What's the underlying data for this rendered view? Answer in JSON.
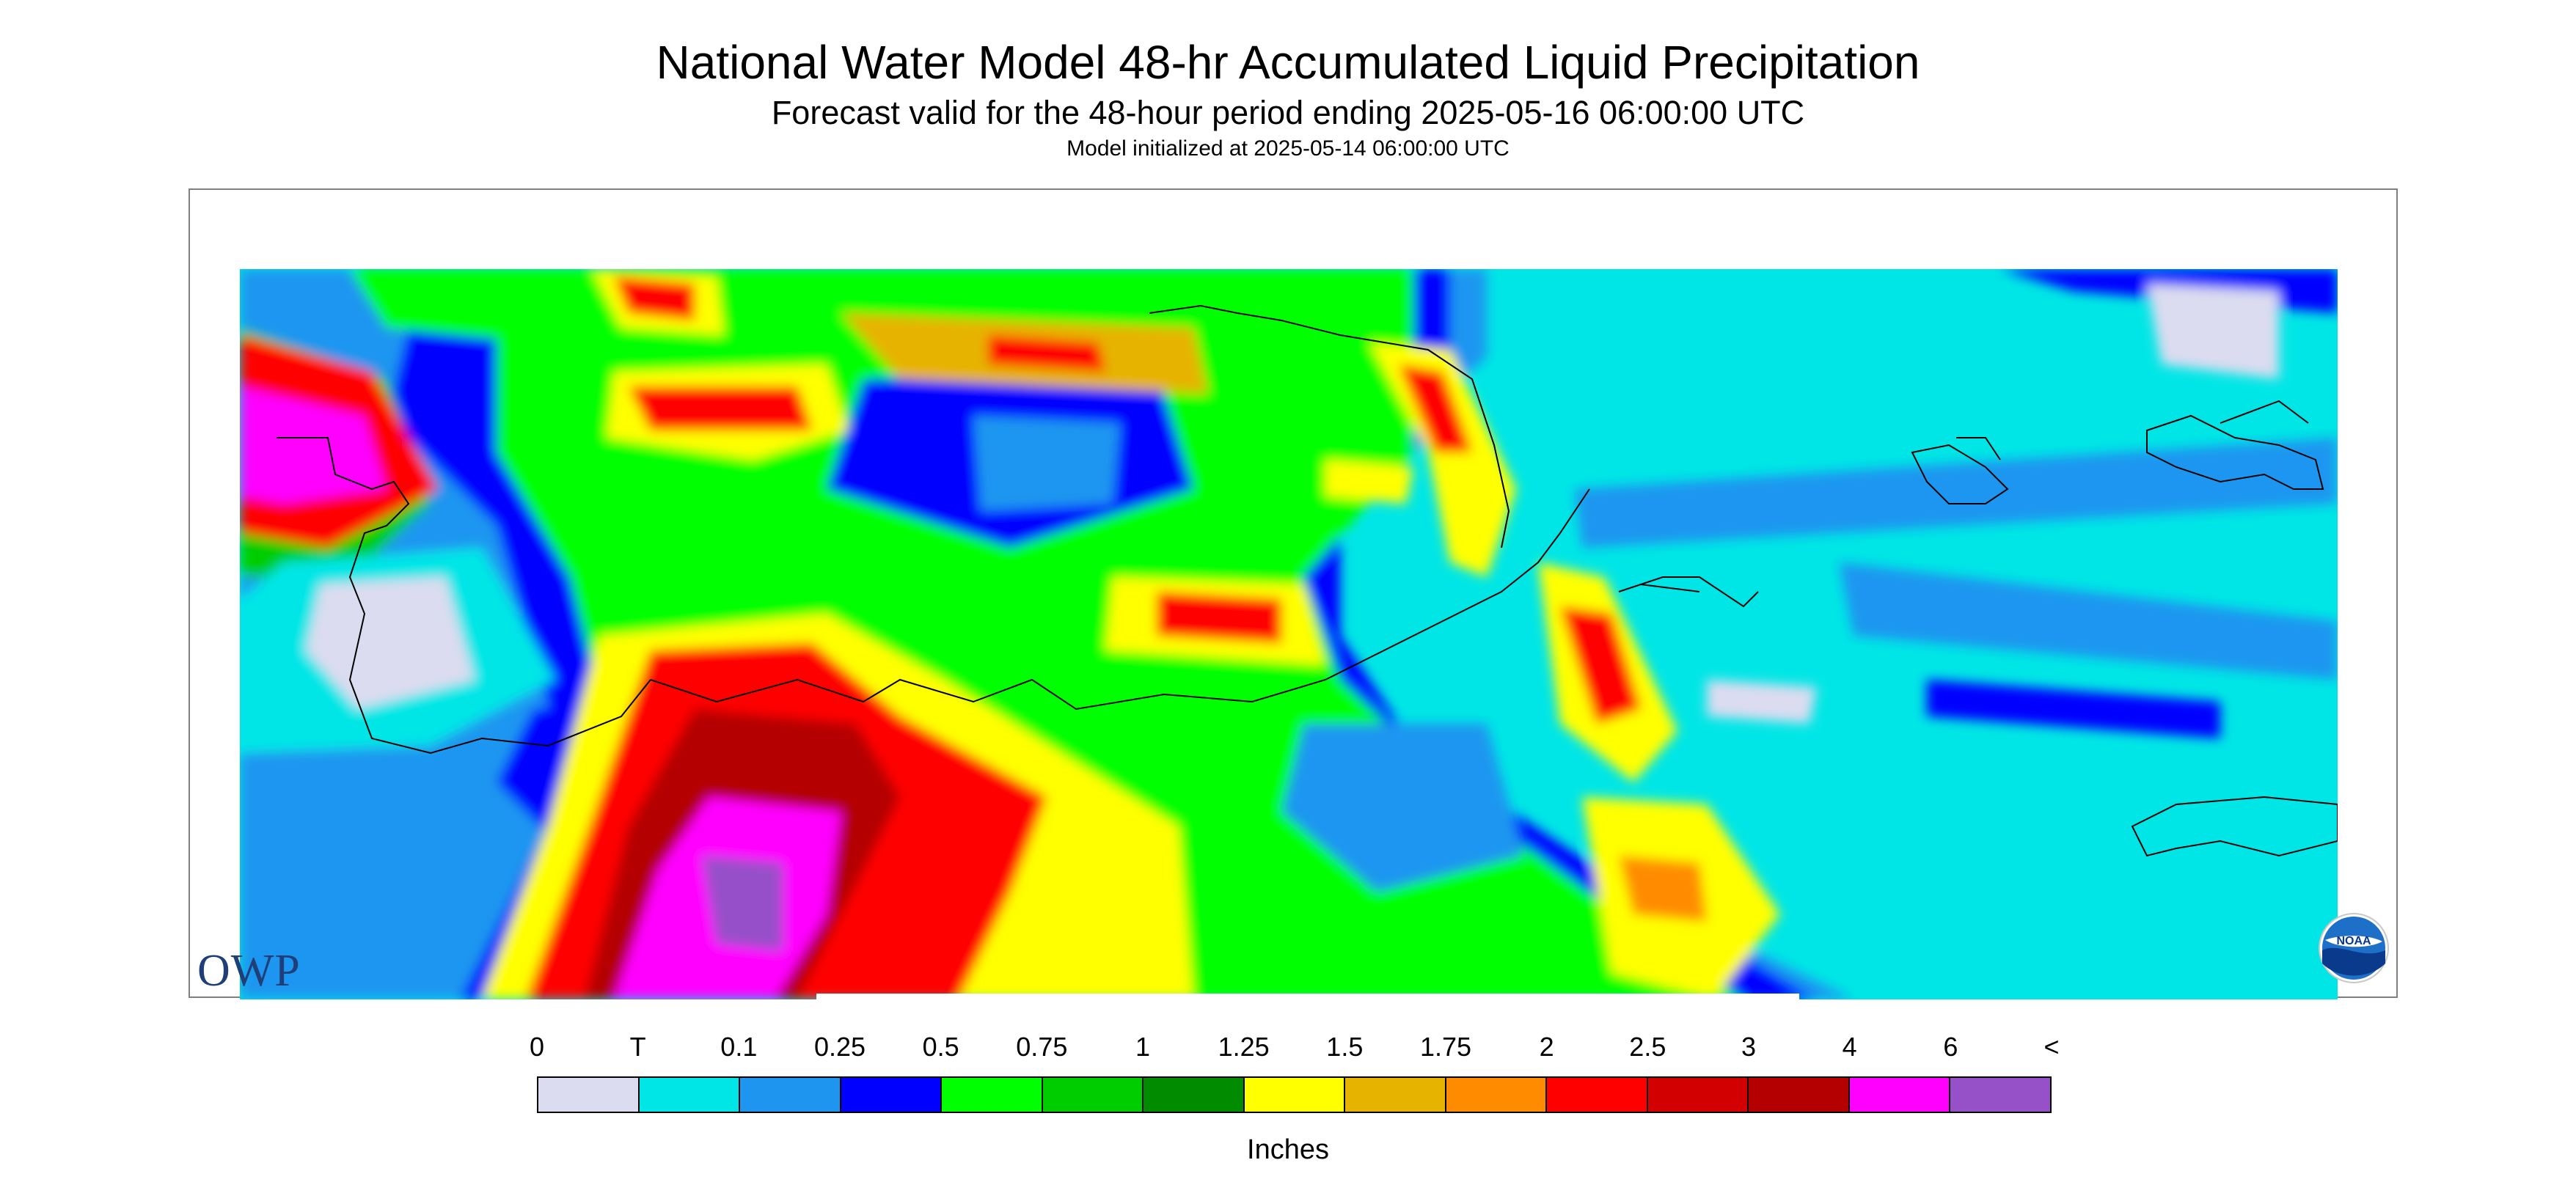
{
  "header": {
    "title": "National Water Model 48-hr Accumulated Liquid Precipitation",
    "subtitle": "Forecast valid for the 48-hour period ending 2025-05-16 06:00:00 UTC",
    "init": "Model initialized at 2025-05-14 06:00:00 UTC"
  },
  "logos": {
    "left": "OWP",
    "left_icon": "owp-logo",
    "right": "NOAA",
    "right_icon": "noaa-logo"
  },
  "legend": {
    "tick_labels": [
      "0",
      "T",
      "0.1",
      "0.25",
      "0.5",
      "0.75",
      "1",
      "1.25",
      "1.5",
      "1.75",
      "2",
      "2.5",
      "3",
      "4",
      "6",
      "<"
    ],
    "colors": [
      "#dcdcf0",
      "#00e6e6",
      "#1e96f0",
      "#0000ff",
      "#00ff00",
      "#00cd00",
      "#008b00",
      "#ffff00",
      "#e6b400",
      "#ff8c00",
      "#ff0000",
      "#d20000",
      "#b40000",
      "#ff00ff",
      "#9650c8"
    ],
    "units": "Inches"
  }
}
